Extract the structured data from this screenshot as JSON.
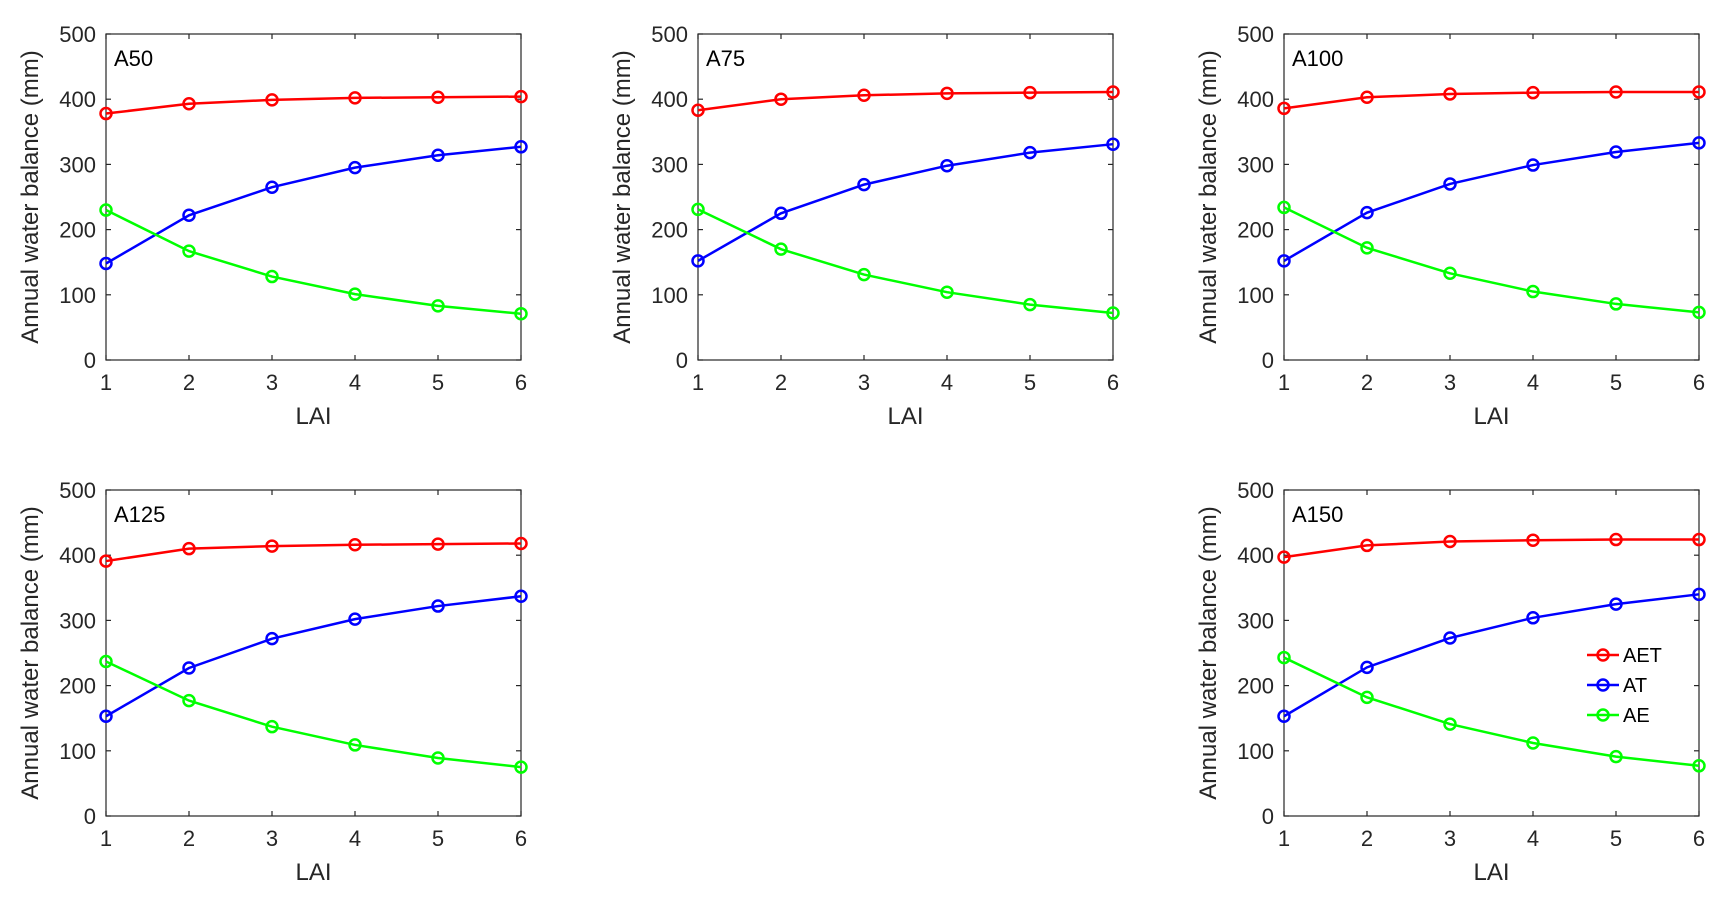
{
  "chart_data": [
    {
      "type": "line",
      "panel_label": "A50",
      "xlabel": "LAI",
      "ylabel": "Annual water balance (mm)",
      "x": [
        1,
        2,
        3,
        4,
        5,
        6
      ],
      "xlim": [
        1,
        6
      ],
      "ylim": [
        0,
        500
      ],
      "xticks": [
        "1",
        "2",
        "3",
        "4",
        "5",
        "6"
      ],
      "yticks": [
        "0",
        "100",
        "200",
        "300",
        "400",
        "500"
      ],
      "grid": false,
      "series": [
        {
          "name": "AET",
          "color": "#ff0000",
          "values": [
            378,
            393,
            399,
            402,
            403,
            404
          ]
        },
        {
          "name": "AT",
          "color": "#0000ff",
          "values": [
            148,
            222,
            265,
            295,
            314,
            327
          ]
        },
        {
          "name": "AE",
          "color": "#00ff00",
          "values": [
            230,
            167,
            128,
            101,
            83,
            71
          ]
        }
      ]
    },
    {
      "type": "line",
      "panel_label": "A75",
      "xlabel": "LAI",
      "ylabel": "Annual water balance (mm)",
      "x": [
        1,
        2,
        3,
        4,
        5,
        6
      ],
      "xlim": [
        1,
        6
      ],
      "ylim": [
        0,
        500
      ],
      "xticks": [
        "1",
        "2",
        "3",
        "4",
        "5",
        "6"
      ],
      "yticks": [
        "0",
        "100",
        "200",
        "300",
        "400",
        "500"
      ],
      "grid": false,
      "series": [
        {
          "name": "AET",
          "color": "#ff0000",
          "values": [
            383,
            400,
            406,
            409,
            410,
            411
          ]
        },
        {
          "name": "AT",
          "color": "#0000ff",
          "values": [
            152,
            225,
            269,
            298,
            318,
            331
          ]
        },
        {
          "name": "AE",
          "color": "#00ff00",
          "values": [
            231,
            170,
            131,
            104,
            85,
            72
          ]
        }
      ]
    },
    {
      "type": "line",
      "panel_label": "A100",
      "xlabel": "LAI",
      "ylabel": "Annual water balance (mm)",
      "x": [
        1,
        2,
        3,
        4,
        5,
        6
      ],
      "xlim": [
        1,
        6
      ],
      "ylim": [
        0,
        500
      ],
      "xticks": [
        "1",
        "2",
        "3",
        "4",
        "5",
        "6"
      ],
      "yticks": [
        "0",
        "100",
        "200",
        "300",
        "400",
        "500"
      ],
      "grid": false,
      "series": [
        {
          "name": "AET",
          "color": "#ff0000",
          "values": [
            386,
            403,
            408,
            410,
            411,
            411
          ]
        },
        {
          "name": "AT",
          "color": "#0000ff",
          "values": [
            152,
            226,
            270,
            299,
            319,
            333
          ]
        },
        {
          "name": "AE",
          "color": "#00ff00",
          "values": [
            234,
            172,
            133,
            105,
            86,
            73
          ]
        }
      ]
    },
    {
      "type": "line",
      "panel_label": "A125",
      "xlabel": "LAI",
      "ylabel": "Annual water balance (mm)",
      "x": [
        1,
        2,
        3,
        4,
        5,
        6
      ],
      "xlim": [
        1,
        6
      ],
      "ylim": [
        0,
        500
      ],
      "xticks": [
        "1",
        "2",
        "3",
        "4",
        "5",
        "6"
      ],
      "yticks": [
        "0",
        "100",
        "200",
        "300",
        "400",
        "500"
      ],
      "grid": false,
      "series": [
        {
          "name": "AET",
          "color": "#ff0000",
          "values": [
            391,
            410,
            414,
            416,
            417,
            418
          ]
        },
        {
          "name": "AT",
          "color": "#0000ff",
          "values": [
            153,
            227,
            272,
            302,
            322,
            337
          ]
        },
        {
          "name": "AE",
          "color": "#00ff00",
          "values": [
            237,
            177,
            137,
            109,
            89,
            75
          ]
        }
      ]
    },
    {
      "type": "line",
      "panel_label": "A150",
      "xlabel": "LAI",
      "ylabel": "Annual water balance (mm)",
      "x": [
        1,
        2,
        3,
        4,
        5,
        6
      ],
      "xlim": [
        1,
        6
      ],
      "ylim": [
        0,
        500
      ],
      "xticks": [
        "1",
        "2",
        "3",
        "4",
        "5",
        "6"
      ],
      "yticks": [
        "0",
        "100",
        "200",
        "300",
        "400",
        "500"
      ],
      "grid": false,
      "legend": {
        "position": "east",
        "entries": [
          "AET",
          "AT",
          "AE"
        ]
      },
      "series": [
        {
          "name": "AET",
          "color": "#ff0000",
          "values": [
            397,
            415,
            421,
            423,
            424,
            424
          ]
        },
        {
          "name": "AT",
          "color": "#0000ff",
          "values": [
            153,
            228,
            273,
            304,
            325,
            340
          ]
        },
        {
          "name": "AE",
          "color": "#00ff00",
          "values": [
            243,
            182,
            141,
            112,
            91,
            77
          ]
        }
      ]
    }
  ]
}
